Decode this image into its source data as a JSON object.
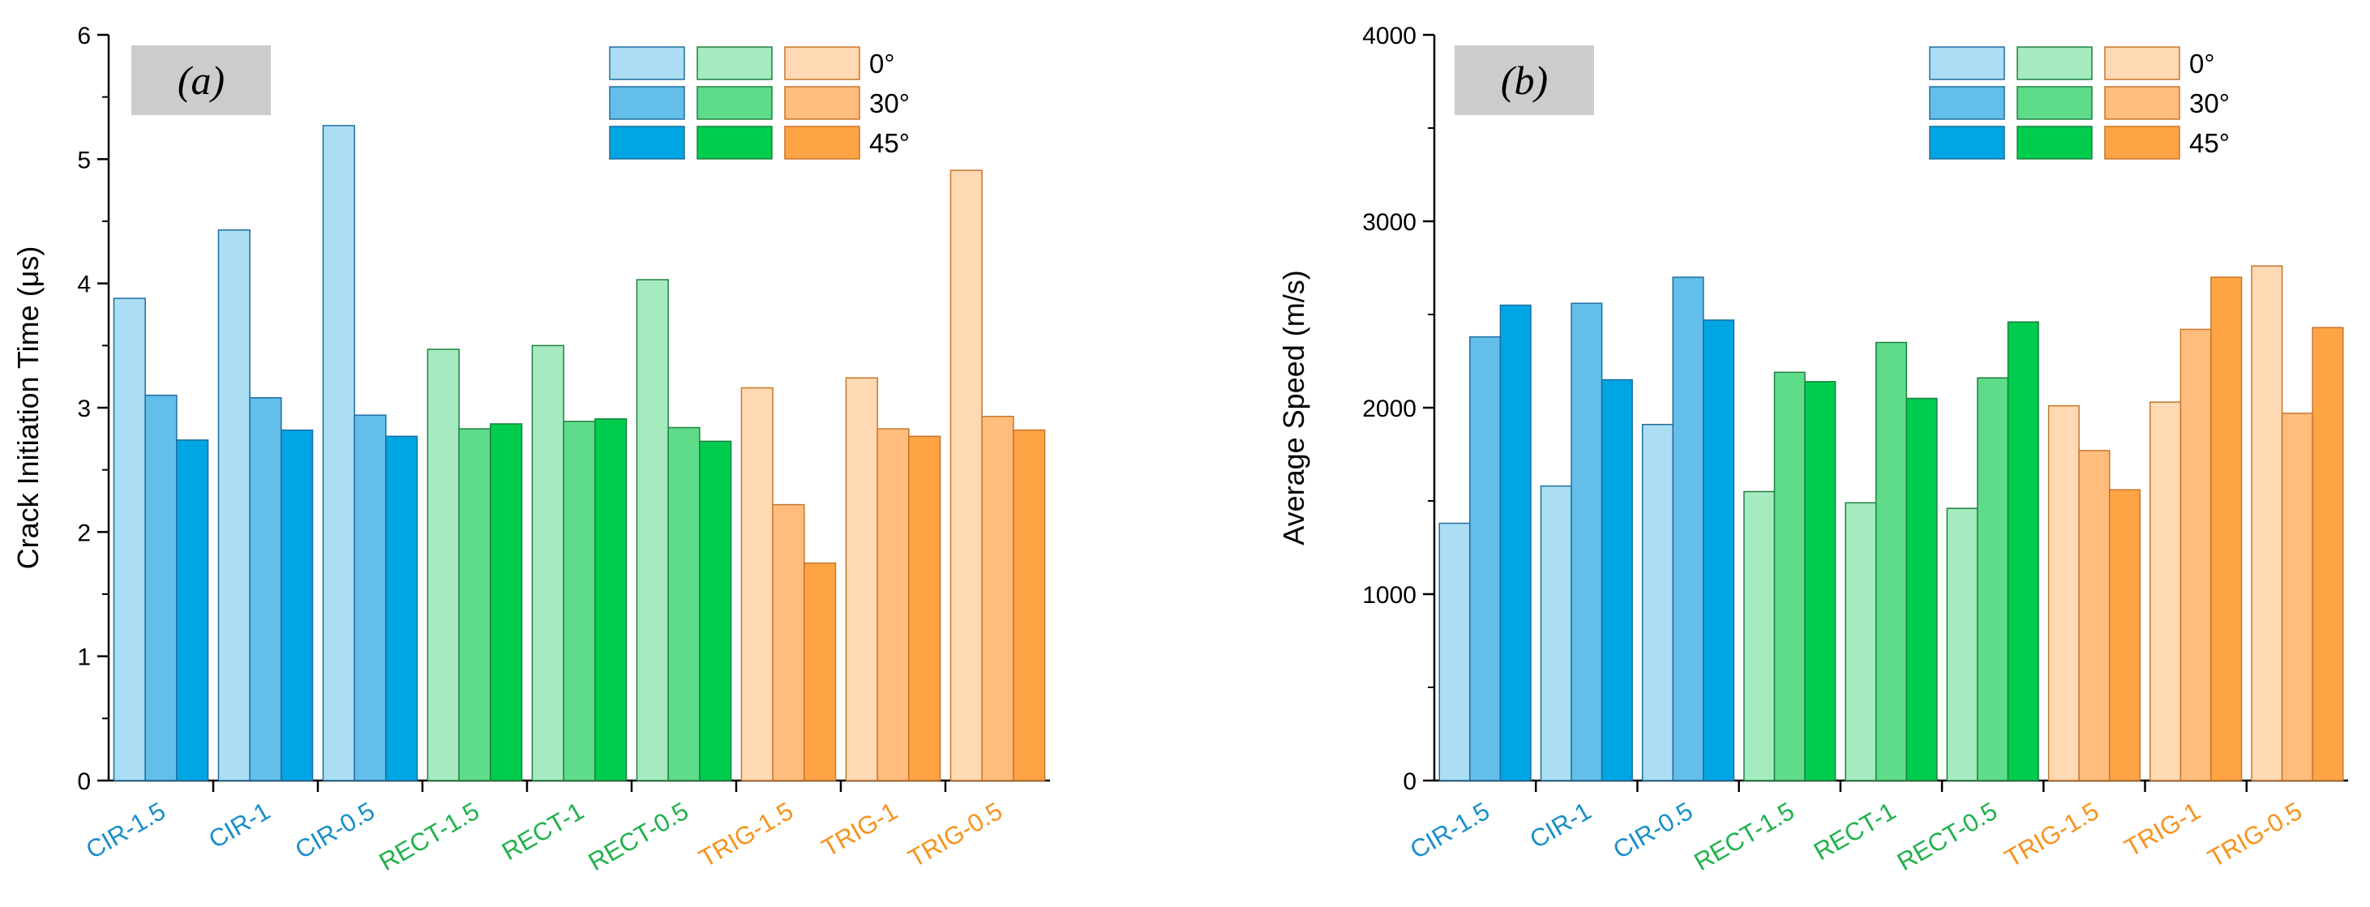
{
  "chart_data": [
    {
      "type": "bar",
      "panel_label": "(a)",
      "ylabel": "Crack Initiation Time (μs)",
      "xlabel": "",
      "ylim": [
        0,
        6
      ],
      "yticks": [
        "0",
        "1",
        "2",
        "3",
        "4",
        "5",
        "6"
      ],
      "grid": false,
      "categories": [
        "CIR-1.5",
        "CIR-1",
        "CIR-0.5",
        "RECT-1.5",
        "RECT-1",
        "RECT-0.5",
        "TRIG-1.5",
        "TRIG-1",
        "TRIG-0.5"
      ],
      "category_colors": [
        "#1A8FC9",
        "#1A8FC9",
        "#1A8FC9",
        "#22B14C",
        "#22B14C",
        "#22B14C",
        "#F7931E",
        "#F7931E",
        "#F7931E"
      ],
      "series": [
        {
          "name": "0°",
          "values": [
            3.88,
            4.43,
            5.27,
            3.47,
            3.5,
            4.03,
            3.16,
            3.24,
            4.91
          ]
        },
        {
          "name": "30°",
          "values": [
            3.1,
            3.08,
            2.94,
            2.83,
            2.89,
            2.84,
            2.22,
            2.83,
            2.93
          ]
        },
        {
          "name": "45°",
          "values": [
            2.74,
            2.82,
            2.77,
            2.87,
            2.91,
            2.73,
            1.75,
            2.77,
            2.82
          ]
        }
      ]
    },
    {
      "type": "bar",
      "panel_label": "(b)",
      "ylabel": "Average Speed (m/s)",
      "xlabel": "",
      "ylim": [
        0,
        4000
      ],
      "yticks": [
        "0",
        "1000",
        "2000",
        "3000",
        "4000"
      ],
      "grid": false,
      "categories": [
        "CIR-1.5",
        "CIR-1",
        "CIR-0.5",
        "RECT-1.5",
        "RECT-1",
        "RECT-0.5",
        "TRIG-1.5",
        "TRIG-1",
        "TRIG-0.5"
      ],
      "category_colors": [
        "#1A8FC9",
        "#1A8FC9",
        "#1A8FC9",
        "#22B14C",
        "#22B14C",
        "#22B14C",
        "#F7931E",
        "#F7931E",
        "#F7931E"
      ],
      "series": [
        {
          "name": "0°",
          "values": [
            1380,
            1580,
            1910,
            1550,
            1490,
            1460,
            2010,
            2030,
            2760
          ]
        },
        {
          "name": "30°",
          "values": [
            2380,
            2560,
            2700,
            2190,
            2350,
            2160,
            1770,
            2420,
            1970
          ]
        },
        {
          "name": "45°",
          "values": [
            2550,
            2150,
            2470,
            2140,
            2050,
            2460,
            1560,
            2700,
            2430
          ]
        }
      ]
    }
  ],
  "legend": {
    "position": "top-right",
    "labels": [
      "0°",
      "30°",
      "45°"
    ]
  },
  "colors": {
    "blue": [
      "#ABDDF3",
      "#63BEEA",
      "#00A5E3"
    ],
    "green": [
      "#A5EBBF",
      "#5EDC8A",
      "#00CC4D"
    ],
    "orange": [
      "#FFD9B3",
      "#FFBC7C",
      "#FFA444"
    ],
    "blue_edge": "#1E6E9E",
    "green_edge": "#1E8040",
    "orange_edge": "#C8752A",
    "panel_label_bg": "#CCCCCC"
  }
}
